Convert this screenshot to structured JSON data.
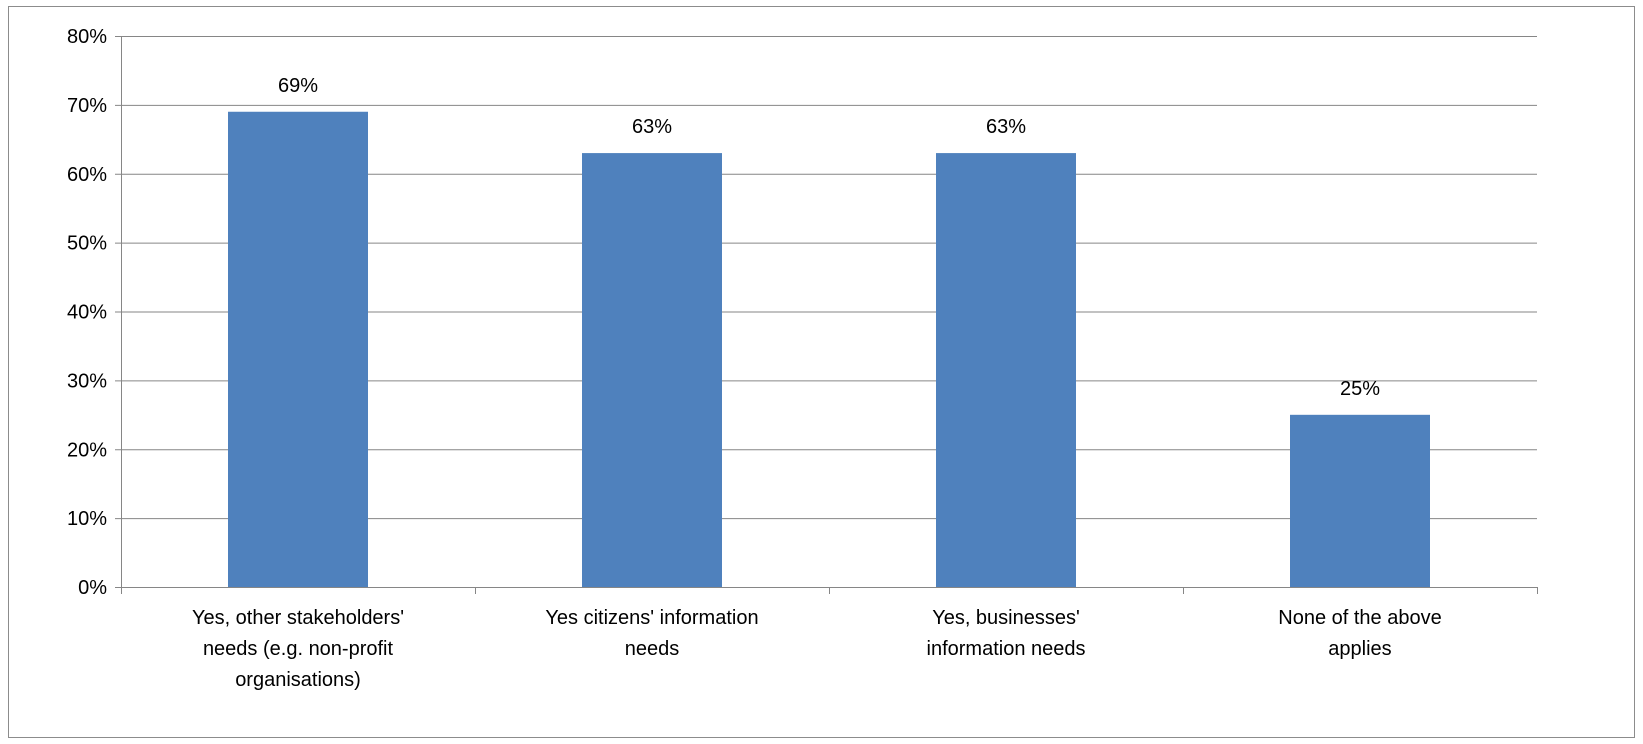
{
  "chart_data": {
    "type": "bar",
    "title": "",
    "xlabel": "",
    "ylabel": "",
    "categories": [
      "Yes, other stakeholders' needs (e.g. non-profit organisations)",
      "Yes citizens' information needs",
      "Yes, businesses' information needs",
      "None of the above applies"
    ],
    "category_lines": [
      [
        "Yes, other stakeholders'",
        "needs (e.g. non-profit",
        "organisations)"
      ],
      [
        "Yes citizens' information",
        "needs"
      ],
      [
        "Yes, businesses'",
        "information needs"
      ],
      [
        "None of the above",
        "applies"
      ]
    ],
    "values": [
      69,
      63,
      63,
      25
    ],
    "data_labels": [
      "69%",
      "63%",
      "63%",
      "25%"
    ],
    "y_ticks": [
      0,
      10,
      20,
      30,
      40,
      50,
      60,
      70,
      80
    ],
    "y_tick_labels": [
      "0%",
      "10%",
      "20%",
      "30%",
      "40%",
      "50%",
      "60%",
      "70%",
      "80%"
    ],
    "ylim": [
      0,
      80
    ],
    "grid": true,
    "legend": "none",
    "colors": {
      "bar": "#4F81BD",
      "grid": "#868686",
      "axis": "#868686",
      "text": "#000000"
    }
  }
}
